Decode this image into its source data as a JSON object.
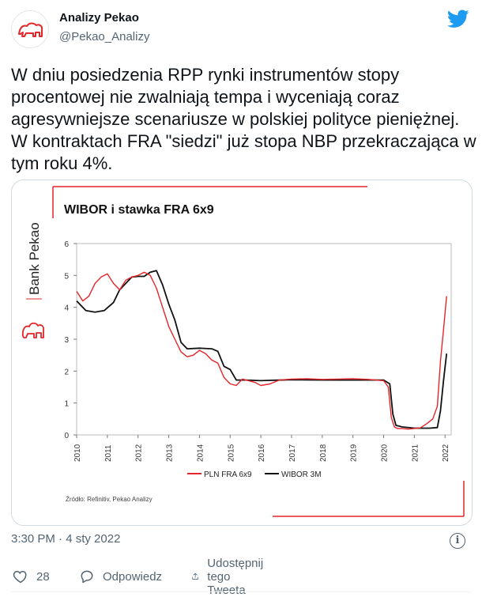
{
  "account": {
    "name": "Analizy Pekao",
    "handle": "@Pekao_Analizy"
  },
  "tweet": {
    "text": "W dniu posiedzenia RPP rynki instrumentów stopy procentowej nie zwalniają tempa i wyceniają coraz agresywniejsze scenariusze w polskiej polityce pieniężnej. W kontraktach FRA \"siedzi\" już stopa NBP przekraczająca w tym roku 4%.",
    "timestamp": "3:30 PM · 4 sty 2022"
  },
  "actions": {
    "like_count": "28",
    "reply_label": "Odpowiedz",
    "share_label": "Udostępnij tego Tweeta"
  },
  "brand": {
    "side_label": "Bank Pekao",
    "accent": "#e4252a",
    "twitter_blue": "#1d9bf0"
  },
  "chart_data": {
    "type": "line",
    "title": "WIBOR i stawka FRA 6x9",
    "xlabel": "",
    "ylabel": "",
    "ylim": [
      0,
      6
    ],
    "yticks": [
      "0",
      "1",
      "2",
      "3",
      "4",
      "5",
      "6"
    ],
    "xlim": [
      2010,
      2022.2
    ],
    "xticks": [
      "2010",
      "2011",
      "2012",
      "2013",
      "2014",
      "2015",
      "2016",
      "2017",
      "2018",
      "2019",
      "2020",
      "2021",
      "2022"
    ],
    "source": "Źródło: Refinitiv, Pekao Analizy",
    "series": [
      {
        "name": "PLN FRA 6x9",
        "color": "#e4252a",
        "x": [
          2010.0,
          2010.2,
          2010.4,
          2010.6,
          2010.8,
          2011.0,
          2011.2,
          2011.4,
          2011.6,
          2011.8,
          2012.0,
          2012.2,
          2012.4,
          2012.6,
          2012.8,
          2013.0,
          2013.2,
          2013.4,
          2013.6,
          2013.8,
          2014.0,
          2014.2,
          2014.4,
          2014.6,
          2014.8,
          2015.0,
          2015.2,
          2015.4,
          2015.6,
          2015.8,
          2016.0,
          2016.3,
          2016.6,
          2017.0,
          2017.5,
          2018.0,
          2018.5,
          2019.0,
          2019.5,
          2020.0,
          2020.15,
          2020.25,
          2020.35,
          2020.45,
          2020.6,
          2020.8,
          2021.0,
          2021.2,
          2021.4,
          2021.6,
          2021.75,
          2021.85,
          2021.95,
          2022.05
        ],
        "values": [
          4.5,
          4.2,
          4.35,
          4.75,
          4.95,
          5.05,
          4.75,
          4.55,
          4.85,
          4.95,
          5.0,
          5.1,
          5.0,
          4.6,
          4.0,
          3.4,
          3.0,
          2.6,
          2.45,
          2.5,
          2.65,
          2.55,
          2.35,
          2.25,
          1.8,
          1.6,
          1.55,
          1.75,
          1.7,
          1.65,
          1.55,
          1.6,
          1.72,
          1.75,
          1.76,
          1.74,
          1.75,
          1.76,
          1.74,
          1.7,
          1.5,
          0.55,
          0.25,
          0.2,
          0.2,
          0.18,
          0.2,
          0.22,
          0.35,
          0.5,
          0.9,
          2.3,
          3.3,
          4.35
        ]
      },
      {
        "name": "WIBOR 3M",
        "color": "#111111",
        "x": [
          2010.0,
          2010.3,
          2010.6,
          2010.9,
          2011.2,
          2011.4,
          2011.6,
          2011.8,
          2012.0,
          2012.2,
          2012.4,
          2012.6,
          2012.8,
          2013.0,
          2013.2,
          2013.4,
          2013.6,
          2014.0,
          2014.4,
          2014.6,
          2014.8,
          2015.0,
          2015.2,
          2015.5,
          2016.0,
          2017.0,
          2018.0,
          2019.0,
          2020.0,
          2020.2,
          2020.3,
          2020.4,
          2020.6,
          2021.0,
          2021.5,
          2021.75,
          2021.85,
          2021.95,
          2022.05
        ],
        "values": [
          4.2,
          3.9,
          3.85,
          3.9,
          4.15,
          4.55,
          4.75,
          4.95,
          4.97,
          4.97,
          5.1,
          5.15,
          4.7,
          4.1,
          3.6,
          2.9,
          2.7,
          2.72,
          2.7,
          2.62,
          2.15,
          2.05,
          1.72,
          1.72,
          1.7,
          1.73,
          1.72,
          1.72,
          1.72,
          1.6,
          0.65,
          0.3,
          0.25,
          0.21,
          0.21,
          0.23,
          0.75,
          1.7,
          2.55
        ]
      }
    ]
  }
}
